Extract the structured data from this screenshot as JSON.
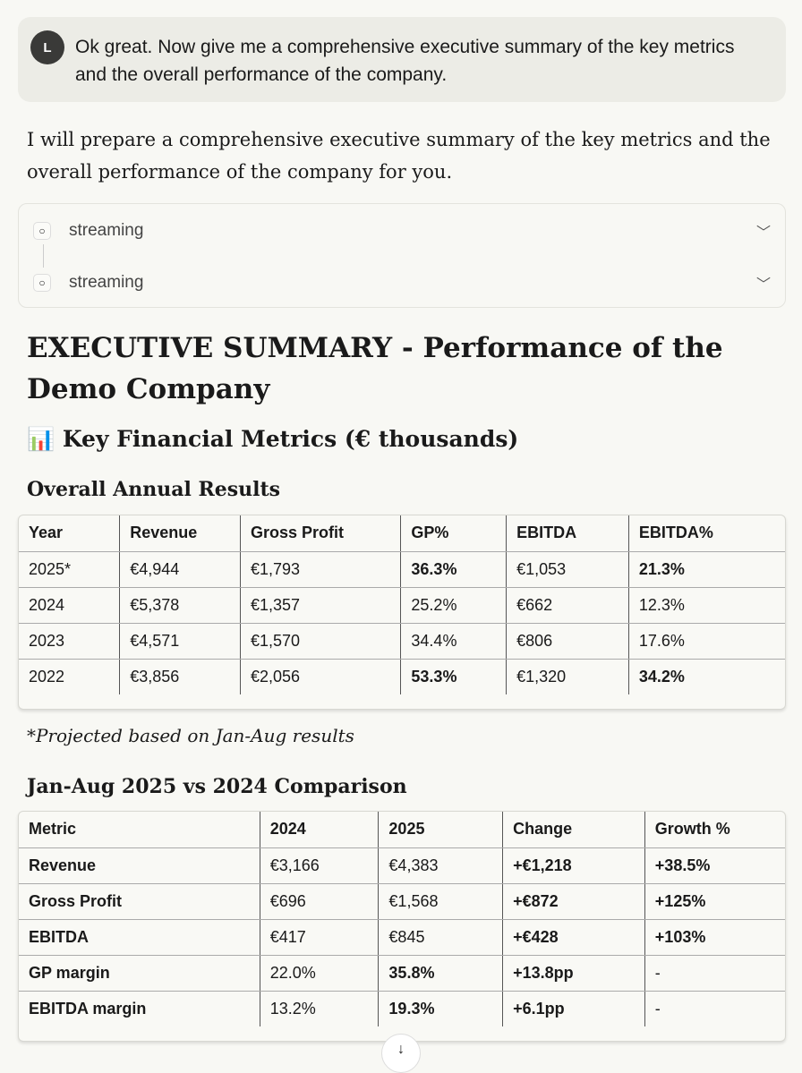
{
  "user_message": {
    "avatar": "L",
    "text": "Ok great. Now give me a comprehensive executive summary of the key metrics and the overall performance of the company."
  },
  "reply": "I will prepare a comprehensive executive summary of the key metrics and the overall performance of the company for you.",
  "streaming": [
    {
      "label": "streaming"
    },
    {
      "label": "streaming"
    }
  ],
  "title": "EXECUTIVE SUMMARY - Performance of the Demo Company",
  "section": {
    "icon": "bar-chart-icon",
    "emoji": "📊",
    "title": "Key Financial Metrics (€ thousands)"
  },
  "annual": {
    "heading": "Overall Annual Results",
    "columns": [
      "Year",
      "Revenue",
      "Gross Profit",
      "GP%",
      "EBITDA",
      "EBITDA%"
    ],
    "rows": [
      [
        "2025*",
        "€4,944",
        "€1,793",
        "36.3%",
        "€1,053",
        "21.3%"
      ],
      [
        "2024",
        "€5,378",
        "€1,357",
        "25.2%",
        "€662",
        "12.3%"
      ],
      [
        "2023",
        "€4,571",
        "€1,570",
        "34.4%",
        "€806",
        "17.6%"
      ],
      [
        "2022",
        "€3,856",
        "€2,056",
        "53.3%",
        "€1,320",
        "34.2%"
      ]
    ],
    "note": "*Projected based on Jan-Aug results"
  },
  "comparison": {
    "heading": "Jan-Aug 2025 vs 2024 Comparison",
    "columns": [
      "Metric",
      "2024",
      "2025",
      "Change",
      "Growth %"
    ],
    "rows": [
      [
        "Revenue",
        "€3,166",
        "€4,383",
        "+€1,218",
        "+38.5%"
      ],
      [
        "Gross Profit",
        "€696",
        "€1,568",
        "+€872",
        "+125%"
      ],
      [
        "EBITDA",
        "€417",
        "€845",
        "+€428",
        "+103%"
      ],
      [
        "GP margin",
        "22.0%",
        "35.8%",
        "+13.8pp",
        "-"
      ],
      [
        "EBITDA margin",
        "13.2%",
        "19.3%",
        "+6.1pp",
        "-"
      ]
    ]
  },
  "scroll_icon": "arrow-down-icon"
}
